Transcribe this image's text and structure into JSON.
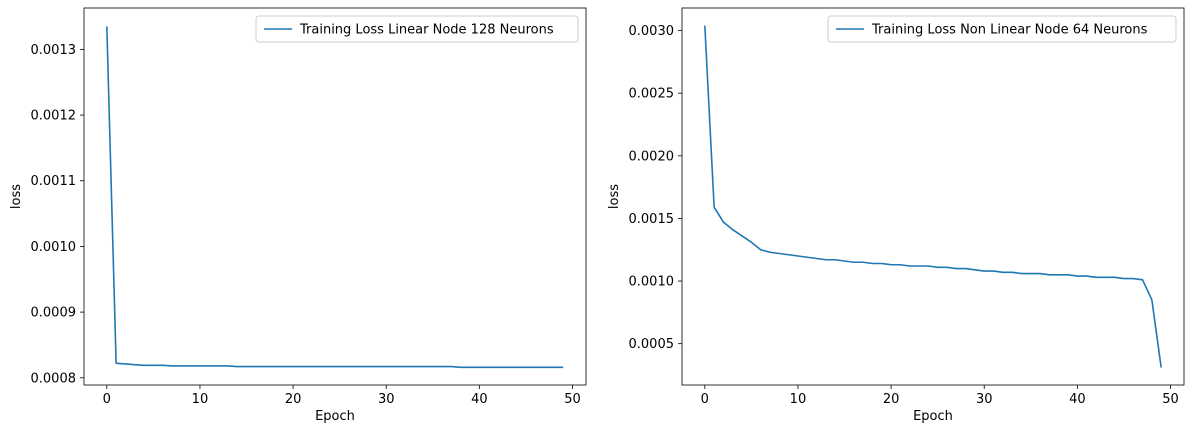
{
  "colors": {
    "line": "#1f77b4",
    "axes": "#000000",
    "background": "#ffffff",
    "legend_border": "#cccccc"
  },
  "chart_data": [
    {
      "type": "line",
      "title": "",
      "xlabel": "Epoch",
      "ylabel": "loss",
      "xlim": [
        -2.45,
        51.45
      ],
      "ylim": [
        0.000789,
        0.001363
      ],
      "xticks": [
        0,
        10,
        20,
        30,
        40,
        50
      ],
      "xtick_labels": [
        "0",
        "10",
        "20",
        "30",
        "40",
        "50"
      ],
      "yticks": [
        0.0008,
        0.0009,
        0.001,
        0.0011,
        0.0012,
        0.0013
      ],
      "ytick_labels": [
        "0.0008",
        "0.0009",
        "0.0010",
        "0.0011",
        "0.0012",
        "0.0013"
      ],
      "grid": false,
      "legend_position": "top-right",
      "series": [
        {
          "name": "Training Loss Linear Node 128 Neurons",
          "x": [
            0,
            1,
            2,
            3,
            4,
            5,
            6,
            7,
            8,
            9,
            10,
            11,
            12,
            13,
            14,
            15,
            16,
            17,
            18,
            19,
            20,
            21,
            22,
            23,
            24,
            25,
            26,
            27,
            28,
            29,
            30,
            31,
            32,
            33,
            34,
            35,
            36,
            37,
            38,
            39,
            40,
            41,
            42,
            43,
            44,
            45,
            46,
            47,
            48,
            49
          ],
          "y": [
            0.001335,
            0.000822,
            0.000821,
            0.00082,
            0.000819,
            0.000819,
            0.000819,
            0.000818,
            0.000818,
            0.000818,
            0.000818,
            0.000818,
            0.000818,
            0.000818,
            0.000817,
            0.000817,
            0.000817,
            0.000817,
            0.000817,
            0.000817,
            0.000817,
            0.000817,
            0.000817,
            0.000817,
            0.000817,
            0.000817,
            0.000817,
            0.000817,
            0.000817,
            0.000817,
            0.000817,
            0.000817,
            0.000817,
            0.000817,
            0.000817,
            0.000817,
            0.000817,
            0.000817,
            0.000816,
            0.000816,
            0.000816,
            0.000816,
            0.000816,
            0.000816,
            0.000816,
            0.000816,
            0.000816,
            0.000816,
            0.000816,
            0.000816
          ]
        }
      ]
    },
    {
      "type": "line",
      "title": "",
      "xlabel": "Epoch",
      "ylabel": "loss",
      "xlim": [
        -2.45,
        51.45
      ],
      "ylim": [
        0.00017,
        0.00318
      ],
      "xticks": [
        0,
        10,
        20,
        30,
        40,
        50
      ],
      "xtick_labels": [
        "0",
        "10",
        "20",
        "30",
        "40",
        "50"
      ],
      "yticks": [
        0.0005,
        0.001,
        0.0015,
        0.002,
        0.0025,
        0.003
      ],
      "ytick_labels": [
        "0.0005",
        "0.0010",
        "0.0015",
        "0.0020",
        "0.0025",
        "0.0030"
      ],
      "grid": false,
      "legend_position": "top-right",
      "series": [
        {
          "name": "Training Loss Non Linear Node 64 Neurons",
          "x": [
            0,
            1,
            2,
            3,
            4,
            5,
            6,
            7,
            8,
            9,
            10,
            11,
            12,
            13,
            14,
            15,
            16,
            17,
            18,
            19,
            20,
            21,
            22,
            23,
            24,
            25,
            26,
            27,
            28,
            29,
            30,
            31,
            32,
            33,
            34,
            35,
            36,
            37,
            38,
            39,
            40,
            41,
            42,
            43,
            44,
            45,
            46,
            47,
            48,
            49
          ],
          "y": [
            0.00304,
            0.00159,
            0.00147,
            0.00141,
            0.00136,
            0.00131,
            0.00125,
            0.00123,
            0.00122,
            0.00121,
            0.0012,
            0.00119,
            0.00118,
            0.00117,
            0.00117,
            0.00116,
            0.00115,
            0.00115,
            0.00114,
            0.00114,
            0.00113,
            0.00113,
            0.00112,
            0.00112,
            0.00112,
            0.00111,
            0.00111,
            0.0011,
            0.0011,
            0.00109,
            0.00108,
            0.00108,
            0.00107,
            0.00107,
            0.00106,
            0.00106,
            0.00106,
            0.00105,
            0.00105,
            0.00105,
            0.00104,
            0.00104,
            0.00103,
            0.00103,
            0.00103,
            0.00102,
            0.00102,
            0.00101,
            0.00085,
            0.00031
          ]
        }
      ]
    }
  ]
}
